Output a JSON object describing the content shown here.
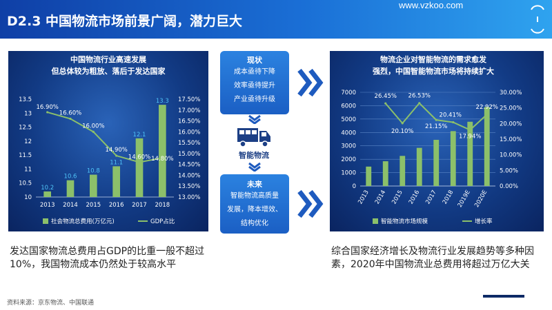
{
  "header": {
    "title": "D2.3 中国物流市场前景广阔，潜力巨大",
    "site": "www.vzkoo.com"
  },
  "left_caption": "发达国家物流总费用占GDP的比重一般不超过10%，我国物流成本仍然处于较高水平",
  "right_caption": "综合国家经济增长及物流行业发展趋势等多种因素，2020年中国物流业总费用将超过万亿大关",
  "source": "资料来源：京东物流、中国联通",
  "flow": {
    "current_title": "现状",
    "current_lines": [
      "成本亟待下降",
      "效率亟待提升",
      "产业亟待升级"
    ],
    "center_label": "智能物流",
    "future_title": "未来",
    "future_lines": [
      "智能物流高质量",
      "发展，降本增效、",
      "结构优化"
    ]
  },
  "colors": {
    "bar": "#8cc06a",
    "line": "#8cc06a",
    "panel_bg": "#123b85",
    "title_bg": "#1a6fd6",
    "chevron": "#1e5bbf"
  },
  "chart_data": [
    {
      "type": "bar+line",
      "title": "中国物流行业高速发展\n但总体较为粗放、落后于发达国家",
      "categories": [
        "2013",
        "2014",
        "2015",
        "2016",
        "2017",
        "2018"
      ],
      "series": [
        {
          "name": "社会物流总费用(万亿元)",
          "type": "bar",
          "axis": "left",
          "values": [
            10.2,
            10.6,
            10.8,
            11.1,
            12.1,
            13.3
          ],
          "labels": [
            "10.2",
            "10.6",
            "10.8",
            "11.1",
            "12.1",
            "13.3"
          ]
        },
        {
          "name": "GDP占比",
          "type": "line",
          "axis": "right",
          "values": [
            16.9,
            16.6,
            16.0,
            14.9,
            14.6,
            14.8
          ],
          "labels": [
            "16.90%",
            "16.60%",
            "16.00%",
            "14.90%",
            "14.60%",
            "14.80%"
          ]
        }
      ],
      "ylim_left": [
        10,
        13.5
      ],
      "yticks_left": [
        "10",
        "10.5",
        "11",
        "11.5",
        "12",
        "12.5",
        "13",
        "13.5"
      ],
      "ylim_right": [
        13.0,
        17.5
      ],
      "yticks_right": [
        "13.00%",
        "13.50%",
        "14.00%",
        "14.50%",
        "15.00%",
        "15.50%",
        "16.00%",
        "16.50%",
        "17.00%",
        "17.50%"
      ],
      "legend": "bottom",
      "grid": false
    },
    {
      "type": "bar+line",
      "title": "物流企业对智能物流的需求愈发\n强烈，中国智能物流市场将持续扩大",
      "categories": [
        "2013",
        "2014",
        "2015",
        "2016",
        "2017",
        "2018",
        "2019E",
        "2020E"
      ],
      "series": [
        {
          "name": "智能物流市场规模",
          "type": "bar",
          "axis": "left",
          "values": [
            1450,
            1850,
            2250,
            2850,
            3450,
            4100,
            4800,
            5900
          ]
        },
        {
          "name": "增长率",
          "type": "line",
          "axis": "right",
          "values": [
            26.45,
            20.1,
            26.53,
            21.15,
            20.41,
            17.94,
            22.92
          ],
          "x": [
            "2014",
            "2015",
            "2016",
            "2017",
            "2018",
            "2019E",
            "2020E"
          ],
          "labels": [
            "26.45%",
            "20.10%",
            "26.53%",
            "21.15%",
            "20.41%",
            "17.94%",
            "22.92%"
          ]
        }
      ],
      "ylim_left": [
        0,
        7000
      ],
      "yticks_left": [
        "0",
        "1000",
        "2000",
        "3000",
        "4000",
        "5000",
        "6000",
        "7000"
      ],
      "ylim_right": [
        0,
        30
      ],
      "yticks_right": [
        "0.00%",
        "5.00%",
        "10.00%",
        "15.00%",
        "20.00%",
        "25.00%",
        "30.00%"
      ],
      "legend": "bottom",
      "grid": true
    }
  ]
}
